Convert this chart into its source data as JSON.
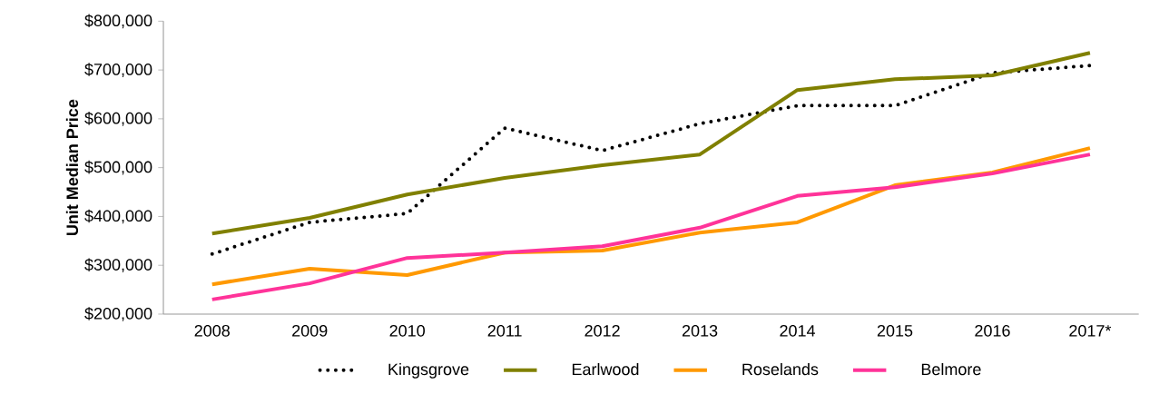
{
  "chart_data": {
    "type": "line",
    "ylabel": "Unit Median Price",
    "categories": [
      "2008",
      "2009",
      "2010",
      "2011",
      "2012",
      "2013",
      "2014",
      "2015",
      "2016",
      "2017*"
    ],
    "series": [
      {
        "name": "Kingsgrove",
        "color": "#000000",
        "line_style": "dotted",
        "values": [
          323000,
          388000,
          406000,
          581000,
          535000,
          590000,
          627000,
          627000,
          694000,
          709000
        ]
      },
      {
        "name": "Earlwood",
        "color": "#808000",
        "line_style": "solid",
        "values": [
          365000,
          397000,
          445000,
          479000,
          505000,
          527000,
          659000,
          681000,
          689000,
          735000
        ]
      },
      {
        "name": "Roselands",
        "color": "#ff9900",
        "line_style": "solid",
        "values": [
          261000,
          293000,
          280000,
          326000,
          330000,
          367000,
          388000,
          464000,
          490000,
          540000
        ]
      },
      {
        "name": "Belmore",
        "color": "#ff3399",
        "line_style": "solid",
        "values": [
          230000,
          263000,
          315000,
          326000,
          339000,
          377000,
          442000,
          460000,
          488000,
          527000
        ]
      }
    ],
    "ylim": [
      200000,
      800000
    ],
    "yticks": [
      {
        "value": 200000,
        "label": "$200,000"
      },
      {
        "value": 300000,
        "label": "$300,000"
      },
      {
        "value": 400000,
        "label": "$400,000"
      },
      {
        "value": 500000,
        "label": "$500,000"
      },
      {
        "value": 600000,
        "label": "$600,000"
      },
      {
        "value": 700000,
        "label": "$700,000"
      },
      {
        "value": 800000,
        "label": "$800,000"
      }
    ],
    "grid": false,
    "legend": "bottom",
    "marker": "none"
  }
}
